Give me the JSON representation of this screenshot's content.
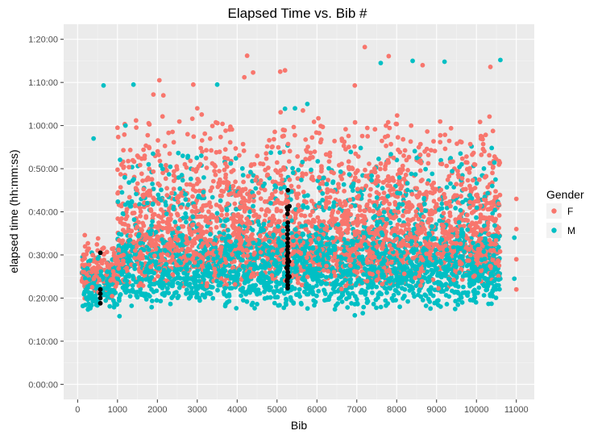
{
  "chart_data": {
    "type": "scatter",
    "title": "Elapsed Time vs. Bib #",
    "xlabel": "Bib",
    "ylabel": "elapsed time (hh:mm:ss)",
    "xlim": [
      -350,
      11450
    ],
    "ylim_minutes": [
      -3.5,
      83.5
    ],
    "x_ticks": [
      0,
      1000,
      2000,
      3000,
      4000,
      5000,
      6000,
      7000,
      8000,
      9000,
      10000,
      11000
    ],
    "x_tick_labels": [
      "0",
      "1000",
      "2000",
      "3000",
      "4000",
      "5000",
      "6000",
      "7000",
      "8000",
      "9000",
      "10000",
      "11000"
    ],
    "y_ticks_minutes": [
      0,
      10,
      20,
      30,
      40,
      50,
      60,
      70,
      80
    ],
    "y_tick_labels": [
      "0:00:00",
      "0:10:00",
      "0:20:00",
      "0:30:00",
      "0:40:00",
      "0:50:00",
      "1:00:00",
      "1:10:00",
      "1:20:00"
    ],
    "grid": true,
    "legend": {
      "title": "Gender",
      "placement": "right",
      "entries": [
        {
          "label": "F",
          "color": "#F8766D"
        },
        {
          "label": "M",
          "color": "#00BFC4"
        }
      ]
    },
    "series": [
      {
        "name": "F",
        "color": "#F8766D",
        "bands": [
          {
            "x": [
              100,
              1000
            ],
            "y": [
              19,
              35
            ],
            "n": 130,
            "center": 25
          },
          {
            "x": [
              1000,
              10600
            ],
            "y": [
              22,
              48
            ],
            "n": 2100,
            "center": 31
          },
          {
            "x": [
              1000,
              10600
            ],
            "y": [
              40,
              64
            ],
            "n": 520,
            "center": 48
          }
        ],
        "notable_points": [
          {
            "x": 7200,
            "y": 78.2
          },
          {
            "x": 4250,
            "y": 76.2
          },
          {
            "x": 7800,
            "y": 76.1
          },
          {
            "x": 10350,
            "y": 73.6
          },
          {
            "x": 5200,
            "y": 72.8
          },
          {
            "x": 5080,
            "y": 72.5
          },
          {
            "x": 4400,
            "y": 72.3
          },
          {
            "x": 4180,
            "y": 71.2
          },
          {
            "x": 8650,
            "y": 74.0
          },
          {
            "x": 2050,
            "y": 70.5
          },
          {
            "x": 2900,
            "y": 69.5
          },
          {
            "x": 6950,
            "y": 69.3
          },
          {
            "x": 1900,
            "y": 67.2
          },
          {
            "x": 2150,
            "y": 67.0
          },
          {
            "x": 1000,
            "y": 59.5
          },
          {
            "x": 3000,
            "y": 64.0
          },
          {
            "x": 5650,
            "y": 63.5
          },
          {
            "x": 11000,
            "y": 43.0
          },
          {
            "x": 11000,
            "y": 29.0
          },
          {
            "x": 11000,
            "y": 22.0
          },
          {
            "x": 11000,
            "y": 36.0
          }
        ]
      },
      {
        "name": "M",
        "color": "#00BFC4",
        "bands": [
          {
            "x": [
              100,
              1000
            ],
            "y": [
              16,
              31
            ],
            "n": 150,
            "center": 22
          },
          {
            "x": [
              1000,
              10600
            ],
            "y": [
              17,
              38
            ],
            "n": 2300,
            "center": 27
          },
          {
            "x": [
              1000,
              10600
            ],
            "y": [
              33,
              56
            ],
            "n": 380,
            "center": 42
          }
        ],
        "notable_points": [
          {
            "x": 10600,
            "y": 75.2
          },
          {
            "x": 8400,
            "y": 75.0
          },
          {
            "x": 9200,
            "y": 74.8
          },
          {
            "x": 7600,
            "y": 74.5
          },
          {
            "x": 1400,
            "y": 69.5
          },
          {
            "x": 650,
            "y": 69.3
          },
          {
            "x": 3500,
            "y": 69.5
          },
          {
            "x": 1200,
            "y": 60.0
          },
          {
            "x": 400,
            "y": 57.0
          },
          {
            "x": 5200,
            "y": 63.9
          },
          {
            "x": 5450,
            "y": 64.0
          },
          {
            "x": 5760,
            "y": 65.0
          },
          {
            "x": 6950,
            "y": 16.0
          },
          {
            "x": 7150,
            "y": 16.5
          },
          {
            "x": 1050,
            "y": 15.8
          },
          {
            "x": 10950,
            "y": 34.0
          },
          {
            "x": 10950,
            "y": 24.5
          }
        ]
      },
      {
        "name": "",
        "color": "#000000",
        "points": [
          {
            "x": 570,
            "y": 30.5
          },
          {
            "x": 570,
            "y": 22.0
          },
          {
            "x": 570,
            "y": 21.0
          },
          {
            "x": 570,
            "y": 20.0
          },
          {
            "x": 570,
            "y": 18.8
          },
          {
            "x": 5270,
            "y": 45.0
          },
          {
            "x": 5310,
            "y": 41.3
          },
          {
            "x": 5250,
            "y": 41.0
          },
          {
            "x": 5270,
            "y": 40.5
          },
          {
            "x": 5260,
            "y": 39.5
          },
          {
            "x": 5270,
            "y": 37.5
          },
          {
            "x": 5260,
            "y": 36.5
          },
          {
            "x": 5270,
            "y": 35.8
          },
          {
            "x": 5260,
            "y": 34.8
          },
          {
            "x": 5270,
            "y": 33.8
          },
          {
            "x": 5265,
            "y": 32.8
          },
          {
            "x": 5270,
            "y": 32.0
          },
          {
            "x": 5260,
            "y": 31.2
          },
          {
            "x": 5275,
            "y": 30.5
          },
          {
            "x": 5255,
            "y": 29.8
          },
          {
            "x": 5270,
            "y": 29.0
          },
          {
            "x": 5262,
            "y": 28.2
          },
          {
            "x": 5270,
            "y": 27.5
          },
          {
            "x": 5258,
            "y": 26.8
          },
          {
            "x": 5272,
            "y": 26.0
          },
          {
            "x": 5265,
            "y": 25.2
          },
          {
            "x": 5268,
            "y": 24.5
          },
          {
            "x": 5262,
            "y": 23.8
          },
          {
            "x": 5270,
            "y": 23.0
          },
          {
            "x": 5266,
            "y": 22.3
          },
          {
            "x": 5300,
            "y": 28.5
          },
          {
            "x": 5310,
            "y": 25.0
          },
          {
            "x": 5240,
            "y": 27.0
          },
          {
            "x": 5250,
            "y": 24.0
          }
        ]
      }
    ]
  }
}
